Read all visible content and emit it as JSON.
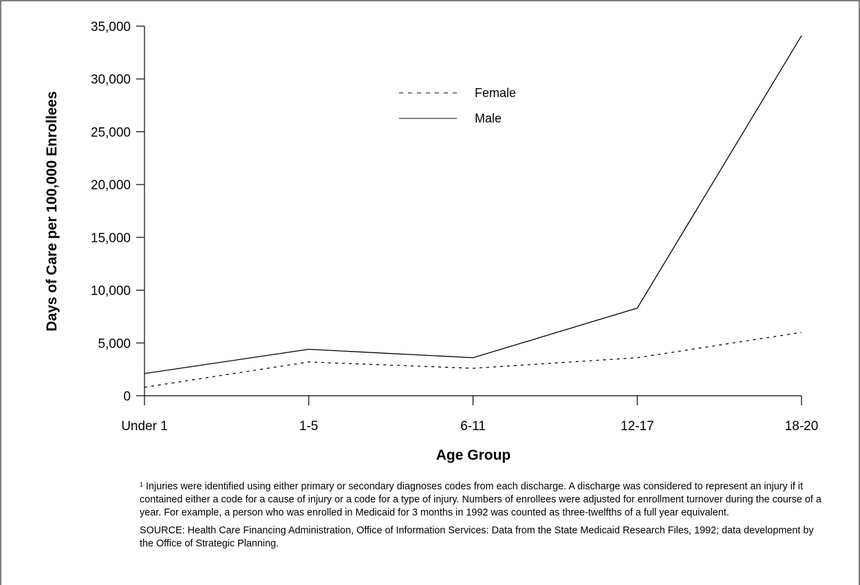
{
  "chart_data": {
    "type": "line",
    "categories": [
      "Under 1",
      "1-5",
      "6-11",
      "12-17",
      "18-20"
    ],
    "series": [
      {
        "name": "Female",
        "values": [
          800,
          3200,
          2600,
          3600,
          6000
        ],
        "style": "dashed"
      },
      {
        "name": "Male",
        "values": [
          2100,
          4400,
          3600,
          8300,
          34100
        ],
        "style": "solid"
      }
    ],
    "title": "",
    "xlabel": "Age Group",
    "ylabel": "Days of Care per 100,000 Enrollees",
    "ylim": [
      0,
      35000
    ],
    "yticks": [
      0,
      5000,
      10000,
      15000,
      20000,
      25000,
      30000,
      35000
    ],
    "ytick_labels": [
      "0",
      "5,000",
      "10,000",
      "15,000",
      "20,000",
      "25,000",
      "30,000",
      "35,000"
    ],
    "grid": false,
    "legend_position": "top-center",
    "line_color": "#000000"
  },
  "notes": {
    "footnote_marker": "1",
    "footnote_text": " Injuries were identified using either primary or secondary diagnoses codes from each discharge.  A discharge was considered to represent an injury if it contained either a code for a cause of injury or a code for a type of injury. Numbers of enrollees were adjusted for enrollment turnover during the course of a year.  For example, a person who was enrolled in Medicaid for 3 months in 1992 was counted as three-twelfths of a full year equivalent.",
    "source_text": "SOURCE: Health Care Financing Administration, Office of Information Services: Data from the State Medicaid Research Files, 1992; data development by the Office of Strategic Planning."
  }
}
